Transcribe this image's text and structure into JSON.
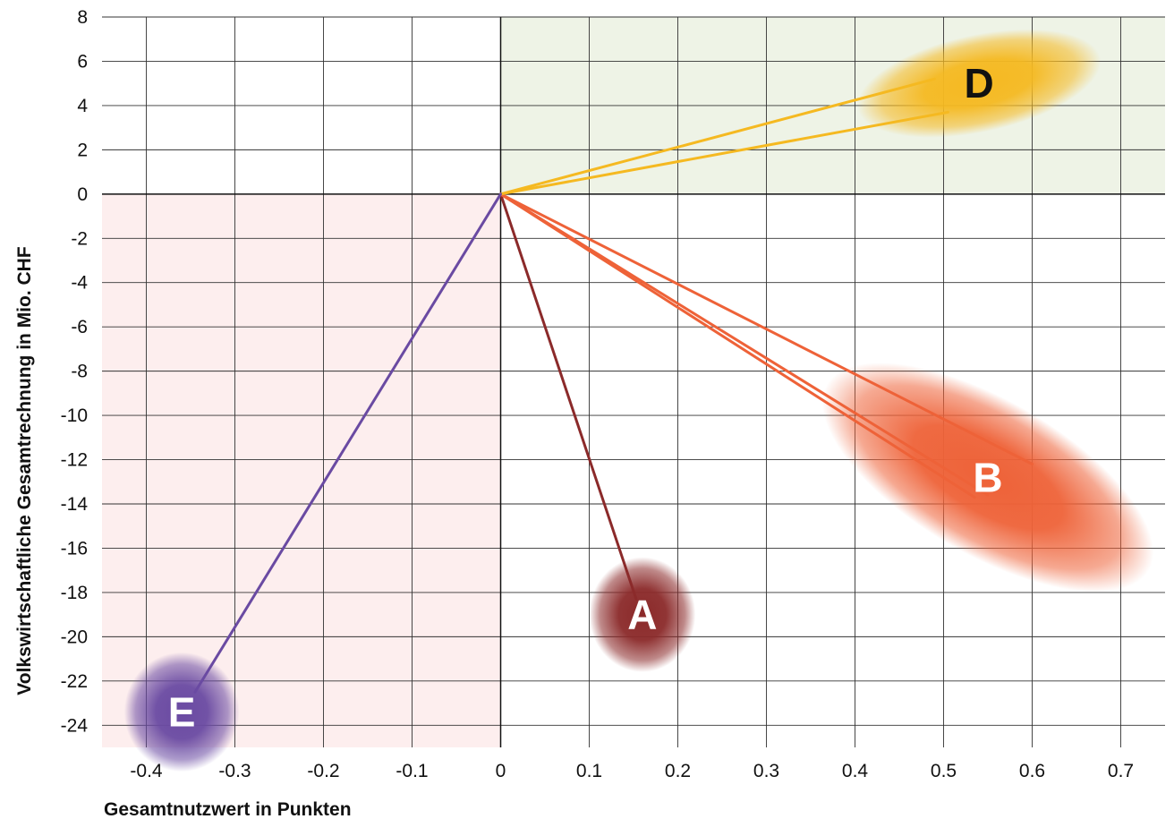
{
  "chart_data": {
    "type": "scatter",
    "xlabel": "Gesamtnutzwert in Punkten",
    "ylabel": "Volkswirtschaftliche Gesamtrechnung in Mio. CHF",
    "xlim": [
      -0.45,
      0.75
    ],
    "ylim": [
      -25,
      8
    ],
    "x_ticks": [
      -0.4,
      -0.3,
      -0.2,
      -0.1,
      0,
      0.1,
      0.2,
      0.3,
      0.4,
      0.5,
      0.6,
      0.7
    ],
    "y_ticks": [
      8,
      6,
      4,
      2,
      0,
      -2,
      -4,
      -6,
      -8,
      -10,
      -12,
      -14,
      -16,
      -18,
      -20,
      -22,
      -24
    ],
    "x_tick_labels": [
      "-0.4",
      "-0.3",
      "-0.2",
      "-0.1",
      "0",
      "0.1",
      "0.2",
      "0.3",
      "0.4",
      "0.5",
      "0.6",
      "0.7"
    ],
    "y_tick_labels": [
      "8",
      "6",
      "4",
      "2",
      "0",
      "-2",
      "-4",
      "-6",
      "-8",
      "-10",
      "-12",
      "-14",
      "-16",
      "-18",
      "-20",
      "-22",
      "-24"
    ],
    "grid": true,
    "quadrant_shading": [
      {
        "quadrant": "positive-positive",
        "color": "#eef3e6"
      },
      {
        "quadrant": "negative-negative",
        "color": "#fdeeee"
      }
    ],
    "clusters": [
      {
        "label": "A",
        "color": "#8b2a2a",
        "label_color": "#ffffff",
        "center": [
          0.16,
          -19
        ],
        "spread": [
          0.06,
          2.6
        ],
        "angle": 0
      },
      {
        "label": "B",
        "color": "#ee6238",
        "label_color": "#ffffff",
        "center": [
          0.55,
          -12.8
        ],
        "spread": [
          0.21,
          3.5
        ],
        "angle": 30
      },
      {
        "label": "D",
        "color": "#f5b921",
        "label_color": "#111111",
        "center": [
          0.54,
          5.0
        ],
        "spread": [
          0.14,
          2.2
        ],
        "angle": -12
      },
      {
        "label": "E",
        "color": "#6a4aa2",
        "label_color": "#ffffff",
        "center": [
          -0.36,
          -23.4
        ],
        "spread": [
          0.065,
          2.7
        ],
        "angle": 0
      }
    ],
    "rays": [
      {
        "cluster": "A",
        "color": "#8b2a2a",
        "from": [
          0,
          0
        ],
        "to": [
          0.153,
          -18.3
        ]
      },
      {
        "cluster": "B",
        "color": "#ee6238",
        "from": [
          0,
          0
        ],
        "to": [
          0.535,
          -13.7
        ]
      },
      {
        "cluster": "B",
        "color": "#ee6238",
        "from": [
          0,
          0
        ],
        "to": [
          0.55,
          -13.6
        ]
      },
      {
        "cluster": "B",
        "color": "#ee6238",
        "from": [
          0,
          0
        ],
        "to": [
          0.6,
          -12.2
        ]
      },
      {
        "cluster": "D",
        "color": "#f5b921",
        "from": [
          0,
          0
        ],
        "to": [
          0.49,
          5.2
        ]
      },
      {
        "cluster": "D",
        "color": "#f5b921",
        "from": [
          0,
          0
        ],
        "to": [
          0.505,
          3.7
        ]
      },
      {
        "cluster": "E",
        "color": "#6a4aa2",
        "from": [
          0,
          0
        ],
        "to": [
          -0.345,
          -22.5
        ]
      }
    ]
  }
}
